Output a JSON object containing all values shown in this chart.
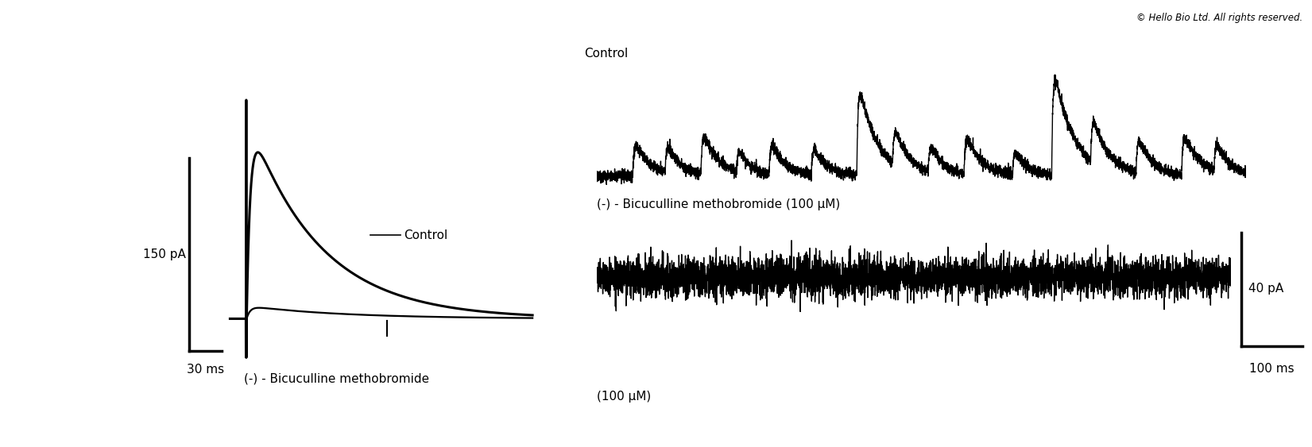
{
  "background_color": "#ffffff",
  "copyright_text": "© Hello Bio Ltd. All rights reserved.",
  "copyright_fontsize": 8.5,
  "left_panel": {
    "scale_bar_label_y": "150 pA",
    "scale_bar_label_x": "30 ms",
    "control_label": "Control",
    "drug_label_line1": "(-) - Bicuculline methobromide",
    "drug_label_line2": "(100 μM)",
    "label_fontsize": 11
  },
  "right_panel": {
    "control_label": "Control",
    "drug_label": "(-) - Bicuculline methobromide (100 μM)",
    "scale_bar_label_y": "40 pA",
    "scale_bar_label_x": "100 ms",
    "label_fontsize": 11
  },
  "trace_color": "#000000",
  "trace_lw": 1.0,
  "evoked_lw": 2.2
}
